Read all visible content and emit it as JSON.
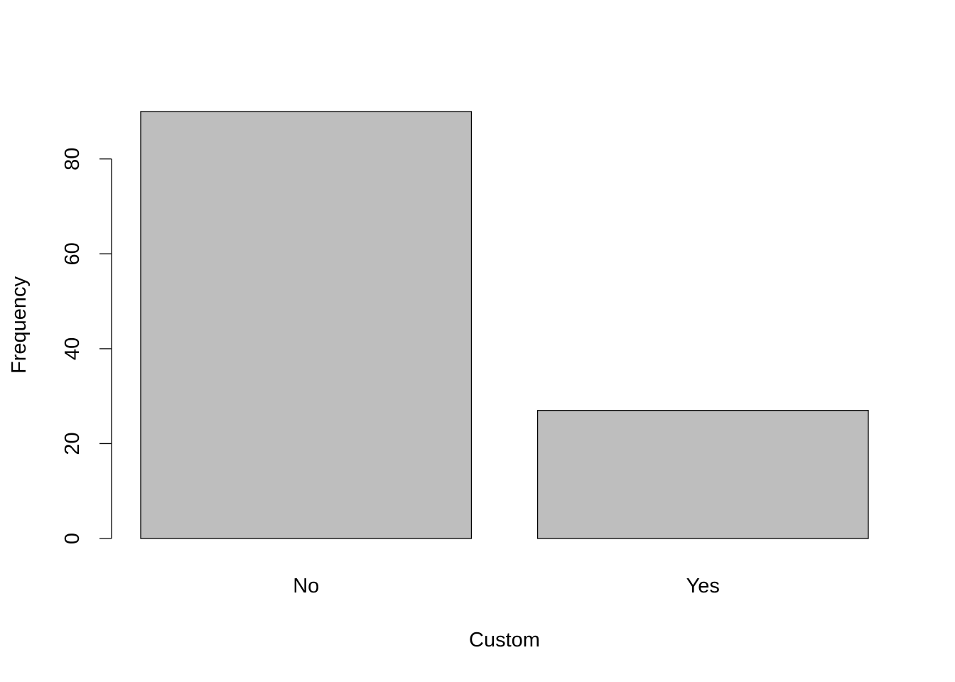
{
  "chart_data": {
    "type": "bar",
    "categories": [
      "No",
      "Yes"
    ],
    "values": [
      90,
      27
    ],
    "xlabel": "Custom",
    "ylabel": "Frequency",
    "ylim": [
      0,
      90
    ],
    "yticks": [
      0,
      20,
      40,
      60,
      80
    ],
    "grid": false,
    "colors": {
      "bar_fill": "#bebebe",
      "bar_stroke": "#000000"
    }
  }
}
